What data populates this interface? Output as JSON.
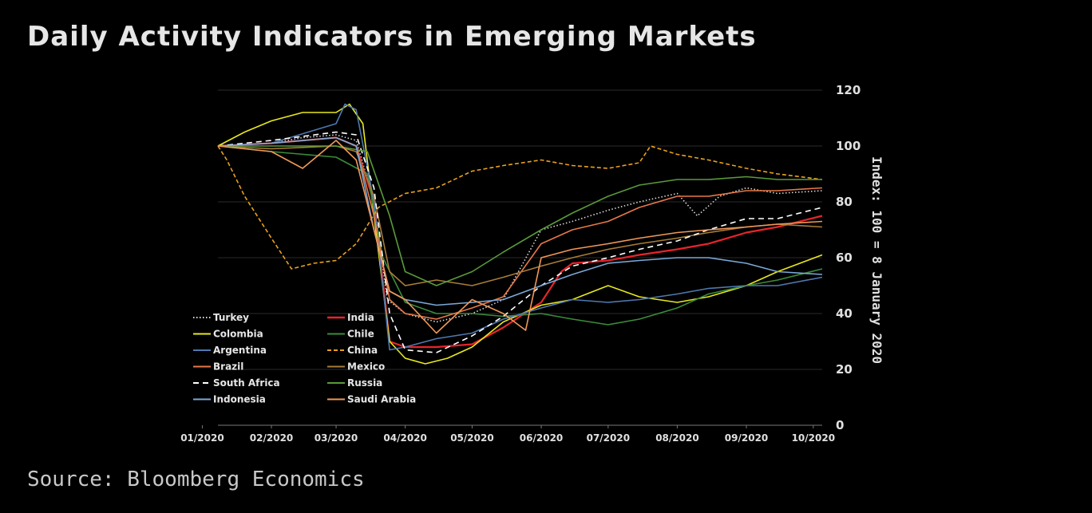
{
  "title": "Daily Activity Indicators in Emerging Markets",
  "source": "Source: Bloomberg Economics",
  "chart_data": {
    "type": "line",
    "ylabel": "Index: 100 = 8 January 2020",
    "xlabel": "",
    "ylim": [
      0,
      120
    ],
    "yticks": [
      "0",
      "20",
      "40",
      "60",
      "80",
      "100",
      "120"
    ],
    "x_range": [
      "2020-01-08",
      "2020-10-05"
    ],
    "xtick_labels": [
      "01/2020",
      "02/2020",
      "03/2020",
      "04/2020",
      "05/2020",
      "06/2020",
      "07/2020",
      "08/2020",
      "09/2020",
      "10/2020"
    ],
    "xtick_dates": [
      "2020-01-01",
      "2020-02-01",
      "2020-03-01",
      "2020-04-01",
      "2020-05-01",
      "2020-06-01",
      "2020-07-01",
      "2020-08-01",
      "2020-09-01",
      "2020-10-01"
    ],
    "grid": "horizontal",
    "y_axis_position": "right",
    "legend_placement": "lower-left",
    "series": [
      {
        "name": "Turkey",
        "color": "#d9d9d9",
        "dash": "dotted",
        "points": [
          [
            "2020-01-08",
            100
          ],
          [
            "2020-02-01",
            101
          ],
          [
            "2020-02-15",
            103
          ],
          [
            "2020-03-01",
            104
          ],
          [
            "2020-03-10",
            102
          ],
          [
            "2020-03-18",
            80
          ],
          [
            "2020-03-24",
            45
          ],
          [
            "2020-04-01",
            40
          ],
          [
            "2020-04-15",
            37
          ],
          [
            "2020-05-01",
            40
          ],
          [
            "2020-05-15",
            45
          ],
          [
            "2020-06-01",
            70
          ],
          [
            "2020-06-15",
            73
          ],
          [
            "2020-07-01",
            77
          ],
          [
            "2020-07-15",
            80
          ],
          [
            "2020-08-01",
            83
          ],
          [
            "2020-08-10",
            75
          ],
          [
            "2020-08-20",
            82
          ],
          [
            "2020-09-01",
            85
          ],
          [
            "2020-09-15",
            83
          ],
          [
            "2020-10-05",
            84
          ]
        ]
      },
      {
        "name": "India",
        "color": "#e8242a",
        "dash": "solid",
        "points": [
          [
            "2020-01-08",
            100
          ],
          [
            "2020-02-01",
            101
          ],
          [
            "2020-03-01",
            103
          ],
          [
            "2020-03-10",
            100
          ],
          [
            "2020-03-18",
            80
          ],
          [
            "2020-03-25",
            30
          ],
          [
            "2020-04-01",
            28
          ],
          [
            "2020-04-15",
            28
          ],
          [
            "2020-05-01",
            29
          ],
          [
            "2020-05-15",
            35
          ],
          [
            "2020-06-01",
            44
          ],
          [
            "2020-06-10",
            55
          ],
          [
            "2020-06-15",
            58
          ],
          [
            "2020-07-01",
            59
          ],
          [
            "2020-07-15",
            61
          ],
          [
            "2020-08-01",
            63
          ],
          [
            "2020-08-15",
            65
          ],
          [
            "2020-09-01",
            69
          ],
          [
            "2020-09-15",
            71
          ],
          [
            "2020-10-05",
            75
          ]
        ]
      },
      {
        "name": "Colombia",
        "color": "#e8e81e",
        "dash": "solid",
        "points": [
          [
            "2020-01-08",
            100
          ],
          [
            "2020-01-20",
            105
          ],
          [
            "2020-02-01",
            109
          ],
          [
            "2020-02-15",
            112
          ],
          [
            "2020-03-01",
            112
          ],
          [
            "2020-03-07",
            115
          ],
          [
            "2020-03-13",
            108
          ],
          [
            "2020-03-18",
            75
          ],
          [
            "2020-03-25",
            30
          ],
          [
            "2020-04-01",
            24
          ],
          [
            "2020-04-10",
            22
          ],
          [
            "2020-04-20",
            24
          ],
          [
            "2020-05-01",
            28
          ],
          [
            "2020-05-15",
            37
          ],
          [
            "2020-06-01",
            43
          ],
          [
            "2020-06-15",
            45
          ],
          [
            "2020-07-01",
            50
          ],
          [
            "2020-07-15",
            46
          ],
          [
            "2020-08-01",
            44
          ],
          [
            "2020-08-15",
            46
          ],
          [
            "2020-09-01",
            50
          ],
          [
            "2020-09-15",
            55
          ],
          [
            "2020-10-05",
            61
          ]
        ]
      },
      {
        "name": "Chile",
        "color": "#3a8c3a",
        "dash": "solid",
        "points": [
          [
            "2020-01-08",
            100
          ],
          [
            "2020-02-01",
            98
          ],
          [
            "2020-03-01",
            96
          ],
          [
            "2020-03-15",
            90
          ],
          [
            "2020-03-22",
            60
          ],
          [
            "2020-04-01",
            44
          ],
          [
            "2020-04-15",
            40
          ],
          [
            "2020-05-01",
            40
          ],
          [
            "2020-05-15",
            39
          ],
          [
            "2020-06-01",
            40
          ],
          [
            "2020-06-15",
            38
          ],
          [
            "2020-07-01",
            36
          ],
          [
            "2020-07-15",
            38
          ],
          [
            "2020-08-01",
            42
          ],
          [
            "2020-08-15",
            47
          ],
          [
            "2020-09-01",
            50
          ],
          [
            "2020-09-15",
            52
          ],
          [
            "2020-10-05",
            56
          ]
        ]
      },
      {
        "name": "Argentina",
        "color": "#4f79b0",
        "dash": "solid",
        "points": [
          [
            "2020-01-08",
            100
          ],
          [
            "2020-02-01",
            101
          ],
          [
            "2020-03-01",
            108
          ],
          [
            "2020-03-05",
            115
          ],
          [
            "2020-03-10",
            113
          ],
          [
            "2020-03-18",
            80
          ],
          [
            "2020-03-25",
            27
          ],
          [
            "2020-04-01",
            28
          ],
          [
            "2020-04-15",
            31
          ],
          [
            "2020-05-01",
            33
          ],
          [
            "2020-05-15",
            38
          ],
          [
            "2020-06-01",
            42
          ],
          [
            "2020-06-15",
            45
          ],
          [
            "2020-07-01",
            44
          ],
          [
            "2020-07-15",
            45
          ],
          [
            "2020-08-01",
            47
          ],
          [
            "2020-08-15",
            49
          ],
          [
            "2020-09-01",
            50
          ],
          [
            "2020-09-15",
            50
          ],
          [
            "2020-10-05",
            53
          ]
        ]
      },
      {
        "name": "China",
        "color": "#e8a020",
        "dash": "dashed",
        "points": [
          [
            "2020-01-08",
            100
          ],
          [
            "2020-01-12",
            95
          ],
          [
            "2020-01-20",
            82
          ],
          [
            "2020-02-01",
            67
          ],
          [
            "2020-02-10",
            56
          ],
          [
            "2020-02-20",
            58
          ],
          [
            "2020-03-01",
            59
          ],
          [
            "2020-03-10",
            65
          ],
          [
            "2020-03-20",
            78
          ],
          [
            "2020-04-01",
            83
          ],
          [
            "2020-04-15",
            85
          ],
          [
            "2020-05-01",
            91
          ],
          [
            "2020-05-15",
            93
          ],
          [
            "2020-06-01",
            95
          ],
          [
            "2020-06-15",
            93
          ],
          [
            "2020-07-01",
            92
          ],
          [
            "2020-07-15",
            94
          ],
          [
            "2020-07-20",
            100
          ],
          [
            "2020-08-01",
            97
          ],
          [
            "2020-08-15",
            95
          ],
          [
            "2020-09-01",
            92
          ],
          [
            "2020-09-15",
            90
          ],
          [
            "2020-10-05",
            88
          ]
        ]
      },
      {
        "name": "Brazil",
        "color": "#e87848",
        "dash": "solid",
        "points": [
          [
            "2020-01-08",
            100
          ],
          [
            "2020-02-01",
            101
          ],
          [
            "2020-03-01",
            103
          ],
          [
            "2020-03-10",
            100
          ],
          [
            "2020-03-18",
            75
          ],
          [
            "2020-03-25",
            45
          ],
          [
            "2020-04-01",
            40
          ],
          [
            "2020-04-15",
            38
          ],
          [
            "2020-05-01",
            42
          ],
          [
            "2020-05-15",
            46
          ],
          [
            "2020-06-01",
            65
          ],
          [
            "2020-06-15",
            70
          ],
          [
            "2020-07-01",
            73
          ],
          [
            "2020-07-15",
            78
          ],
          [
            "2020-08-01",
            82
          ],
          [
            "2020-08-15",
            82
          ],
          [
            "2020-09-01",
            84
          ],
          [
            "2020-09-15",
            84
          ],
          [
            "2020-10-05",
            85
          ]
        ]
      },
      {
        "name": "Mexico",
        "color": "#a87c38",
        "dash": "solid",
        "points": [
          [
            "2020-01-08",
            100
          ],
          [
            "2020-02-01",
            99
          ],
          [
            "2020-03-01",
            100
          ],
          [
            "2020-03-10",
            98
          ],
          [
            "2020-03-18",
            82
          ],
          [
            "2020-03-25",
            55
          ],
          [
            "2020-04-01",
            50
          ],
          [
            "2020-04-15",
            52
          ],
          [
            "2020-05-01",
            50
          ],
          [
            "2020-05-15",
            53
          ],
          [
            "2020-06-01",
            57
          ],
          [
            "2020-06-15",
            60
          ],
          [
            "2020-07-01",
            63
          ],
          [
            "2020-07-15",
            65
          ],
          [
            "2020-08-01",
            67
          ],
          [
            "2020-08-15",
            69
          ],
          [
            "2020-09-01",
            71
          ],
          [
            "2020-09-15",
            72
          ],
          [
            "2020-10-05",
            71
          ]
        ]
      },
      {
        "name": "South Africa",
        "color": "#ffffff",
        "dash": "long-dash",
        "points": [
          [
            "2020-01-08",
            100
          ],
          [
            "2020-02-01",
            102
          ],
          [
            "2020-03-01",
            105
          ],
          [
            "2020-03-10",
            104
          ],
          [
            "2020-03-18",
            85
          ],
          [
            "2020-03-25",
            40
          ],
          [
            "2020-04-01",
            27
          ],
          [
            "2020-04-15",
            26
          ],
          [
            "2020-05-01",
            32
          ],
          [
            "2020-05-15",
            39
          ],
          [
            "2020-06-01",
            50
          ],
          [
            "2020-06-15",
            57
          ],
          [
            "2020-07-01",
            60
          ],
          [
            "2020-07-15",
            63
          ],
          [
            "2020-08-01",
            66
          ],
          [
            "2020-08-15",
            70
          ],
          [
            "2020-09-01",
            74
          ],
          [
            "2020-09-15",
            74
          ],
          [
            "2020-10-05",
            78
          ]
        ]
      },
      {
        "name": "Russia",
        "color": "#5a9a3a",
        "dash": "solid",
        "points": [
          [
            "2020-01-08",
            100
          ],
          [
            "2020-02-01",
            100
          ],
          [
            "2020-03-01",
            100
          ],
          [
            "2020-03-15",
            98
          ],
          [
            "2020-03-25",
            75
          ],
          [
            "2020-04-01",
            55
          ],
          [
            "2020-04-15",
            50
          ],
          [
            "2020-05-01",
            55
          ],
          [
            "2020-05-15",
            62
          ],
          [
            "2020-06-01",
            70
          ],
          [
            "2020-06-15",
            76
          ],
          [
            "2020-07-01",
            82
          ],
          [
            "2020-07-15",
            86
          ],
          [
            "2020-08-01",
            88
          ],
          [
            "2020-08-15",
            88
          ],
          [
            "2020-09-01",
            89
          ],
          [
            "2020-09-15",
            88
          ],
          [
            "2020-10-05",
            88
          ]
        ]
      },
      {
        "name": "Indonesia",
        "color": "#7aa8d8",
        "dash": "solid",
        "points": [
          [
            "2020-01-08",
            100
          ],
          [
            "2020-02-01",
            101
          ],
          [
            "2020-03-01",
            103
          ],
          [
            "2020-03-10",
            100
          ],
          [
            "2020-03-18",
            70
          ],
          [
            "2020-03-25",
            48
          ],
          [
            "2020-04-01",
            45
          ],
          [
            "2020-04-15",
            43
          ],
          [
            "2020-05-01",
            44
          ],
          [
            "2020-05-15",
            45
          ],
          [
            "2020-06-01",
            50
          ],
          [
            "2020-06-15",
            54
          ],
          [
            "2020-07-01",
            58
          ],
          [
            "2020-07-15",
            59
          ],
          [
            "2020-08-01",
            60
          ],
          [
            "2020-08-15",
            60
          ],
          [
            "2020-09-01",
            58
          ],
          [
            "2020-09-15",
            55
          ],
          [
            "2020-10-05",
            54
          ]
        ]
      },
      {
        "name": "Saudi Arabia",
        "color": "#f09858",
        "dash": "solid",
        "points": [
          [
            "2020-01-08",
            100
          ],
          [
            "2020-02-01",
            98
          ],
          [
            "2020-02-15",
            92
          ],
          [
            "2020-03-01",
            102
          ],
          [
            "2020-03-10",
            95
          ],
          [
            "2020-03-18",
            70
          ],
          [
            "2020-03-25",
            48
          ],
          [
            "2020-04-01",
            45
          ],
          [
            "2020-04-15",
            33
          ],
          [
            "2020-05-01",
            45
          ],
          [
            "2020-05-15",
            40
          ],
          [
            "2020-05-25",
            34
          ],
          [
            "2020-06-01",
            60
          ],
          [
            "2020-06-15",
            63
          ],
          [
            "2020-07-01",
            65
          ],
          [
            "2020-07-15",
            67
          ],
          [
            "2020-08-01",
            69
          ],
          [
            "2020-08-15",
            70
          ],
          [
            "2020-09-01",
            71
          ],
          [
            "2020-09-15",
            72
          ],
          [
            "2020-10-05",
            73
          ]
        ]
      }
    ]
  }
}
